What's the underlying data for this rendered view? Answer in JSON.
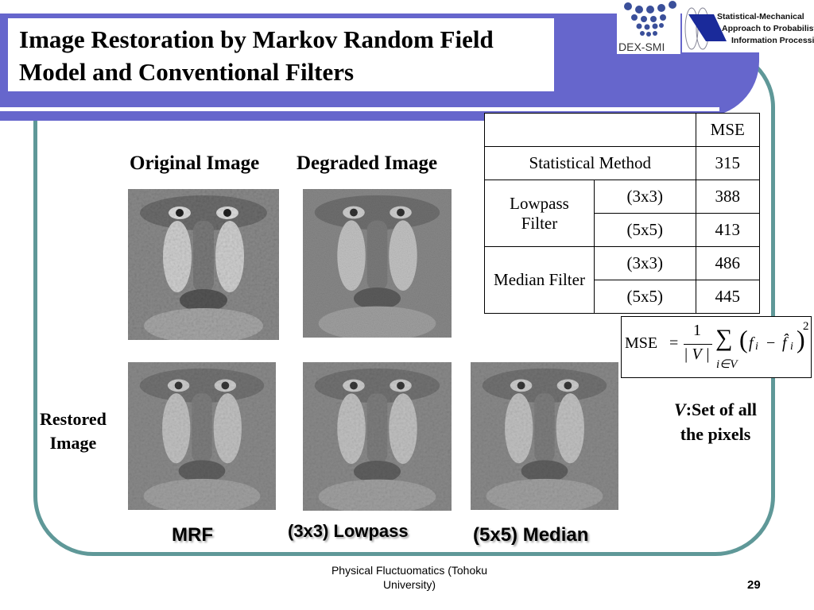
{
  "slide": {
    "title": "Image Restoration by Markov Random Field Model and Conventional Filters",
    "page_number": "29",
    "footer": "Physical Fluctuomatics (Tohoku University)"
  },
  "logos": {
    "left_text": "DEX-SMI",
    "right_lines": [
      "Statistical-Mechanical",
      "Approach to Probabilistic",
      "Information Processing"
    ]
  },
  "labels": {
    "original": "Original Image",
    "degraded": "Degraded Image",
    "restored_line1": "Restored",
    "restored_line2": "Image",
    "mrf": "MRF",
    "lowpass": "(3x3) Lowpass",
    "median": "(5x5) Median"
  },
  "table": {
    "header": "MSE",
    "rows": [
      {
        "method": "Statistical Method",
        "value": "315"
      },
      {
        "method": "Lowpass Filter",
        "sizes": [
          "(3x3)",
          "(5x5)"
        ],
        "values": [
          "388",
          "413"
        ]
      },
      {
        "method": "Median Filter",
        "sizes": [
          "(3x3)",
          "(5x5)"
        ],
        "values": [
          "486",
          "445"
        ]
      }
    ]
  },
  "formula": {
    "lhs": "MSE",
    "equals": "=",
    "numerator": "1",
    "denominator": "| V |",
    "sum": "∑",
    "sub": "i∈V",
    "body_open": "(",
    "f": "f",
    "i": "i",
    "minus": "−",
    "fhat": "f̂",
    "body_close": ")",
    "power": "2"
  },
  "note": {
    "var": "V",
    "line1": ":Set of all",
    "line2": "the pixels"
  },
  "colors": {
    "band": "#6666cc",
    "frame": "#5f9898"
  }
}
